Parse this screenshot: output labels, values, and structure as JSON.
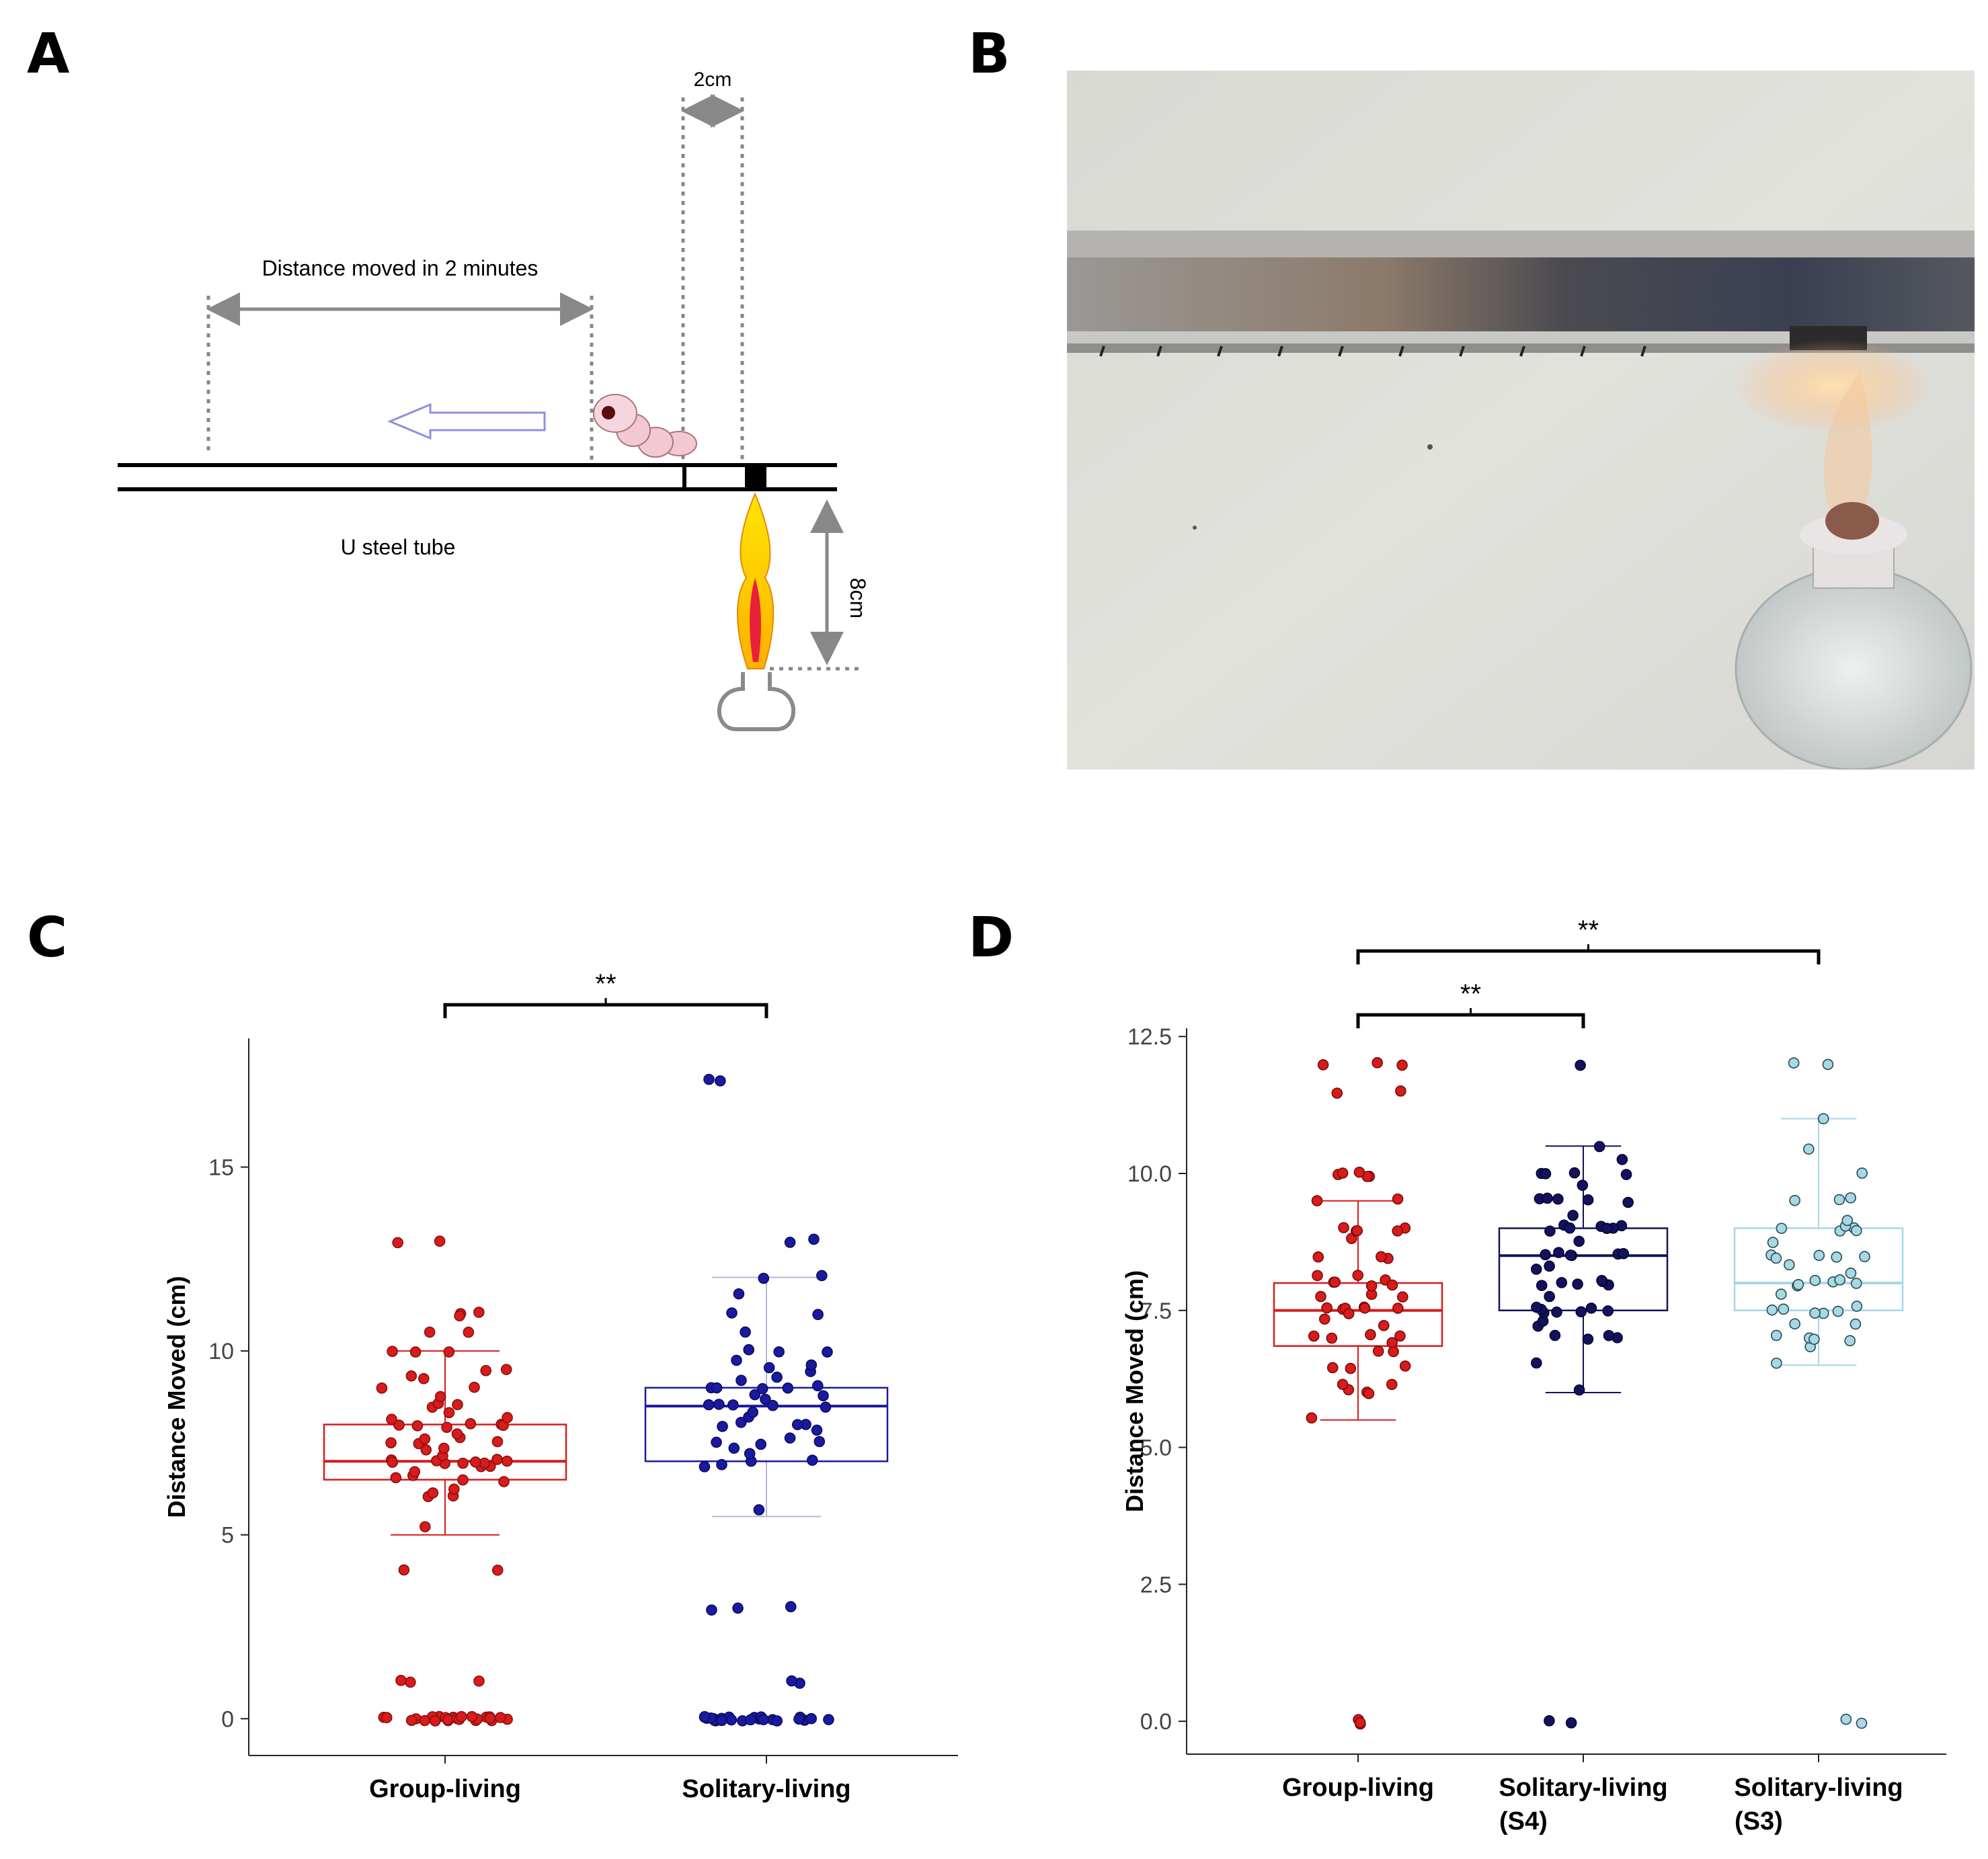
{
  "panel_labels": {
    "a": "A",
    "b": "B",
    "c": "C",
    "d": "D"
  },
  "diagram": {
    "gap_label": "2cm",
    "distance_label": "Distance moved in 2 minutes",
    "tube_label": "U steel tube",
    "height_label": "8cm"
  },
  "photo": {
    "description_icon": "steel-tube-over-alcohol-lamp-photo"
  },
  "colors": {
    "group": "#d81b1b",
    "solitary": "#1a1aa0",
    "solitary_s4": "#12125e",
    "solitary_s3": "#a6d8e6",
    "axis": "#222222"
  },
  "chart_data": [
    {
      "type": "scatter",
      "panel": "C",
      "ylabel": "Distance Moved (cm)",
      "xlabel": "",
      "ylim": [
        -1.0,
        18.5
      ],
      "yticks": [
        "0",
        "5",
        "10",
        "15"
      ],
      "categories": [
        "Group-living",
        "Solitary-living"
      ],
      "significance": [
        {
          "from": 0,
          "to": 1,
          "label": "**"
        }
      ],
      "boxes": [
        {
          "q1": 6.5,
          "median": 7.0,
          "q3": 8.0,
          "whisker_low": 5.0,
          "whisker_high": 10.0
        },
        {
          "q1": 7.0,
          "median": 8.5,
          "q3": 9.0,
          "whisker_low": 5.5,
          "whisker_high": 12.0
        }
      ],
      "points": [
        [
          0,
          0,
          0,
          0,
          0,
          0,
          0,
          0,
          0,
          0,
          0,
          0,
          0,
          0,
          0,
          0,
          0,
          0,
          0,
          0,
          0,
          0,
          0,
          0,
          1,
          1,
          1,
          4,
          4,
          5.2,
          6,
          6,
          6.2,
          6.3,
          6.5,
          6.5,
          6.5,
          6.6,
          6.7,
          6.8,
          6.9,
          7,
          7,
          7,
          7,
          7,
          7,
          7,
          7,
          7.1,
          7.2,
          7.3,
          7.4,
          7.5,
          7.5,
          7.5,
          7.6,
          7.7,
          7.8,
          7.9,
          8,
          8,
          8,
          8,
          8,
          8.1,
          8.2,
          8.3,
          8.5,
          8.5,
          8.6,
          8.8,
          9,
          9,
          9.2,
          9.3,
          9.5,
          9.5,
          10,
          10,
          10,
          10.5,
          10.5,
          11,
          11,
          11,
          13,
          13
        ],
        [
          0,
          0,
          0,
          0,
          0,
          0,
          0,
          0,
          0,
          0,
          0,
          0,
          0,
          0,
          0,
          0,
          0,
          0,
          0,
          0,
          0,
          0,
          0,
          0,
          1,
          1,
          3,
          3,
          3,
          5.7,
          6.8,
          6.9,
          7,
          7,
          7.2,
          7.3,
          7.5,
          7.5,
          7.5,
          7.6,
          7.8,
          8,
          8,
          8,
          8,
          8.2,
          8.3,
          8.5,
          8.5,
          8.5,
          8.5,
          8.6,
          8.7,
          8.8,
          8.8,
          9,
          9,
          9,
          9,
          9,
          9.2,
          9.3,
          9.5,
          9.5,
          9.6,
          9.8,
          10,
          10,
          10,
          10.5,
          11,
          11,
          11.5,
          12,
          12,
          13,
          13,
          17.3,
          17.4
        ]
      ]
    },
    {
      "type": "scatter",
      "panel": "D",
      "ylabel": "Distance Moved (cm)",
      "xlabel": "",
      "ylim": [
        -0.6,
        12.65
      ],
      "yticks": [
        "0.0",
        "2.5",
        "5.0",
        "7.5",
        "10.0",
        "12.5"
      ],
      "categories": [
        "Group-living",
        "Solitary-living (S4)",
        "Solitary-living (S3)"
      ],
      "category_lines": [
        [
          "Group-living",
          ""
        ],
        [
          "Solitary-living",
          "(S4)"
        ],
        [
          "Solitary-living",
          "(S3)"
        ]
      ],
      "significance": [
        {
          "from": 0,
          "to": 1,
          "label": "**"
        },
        {
          "from": 0,
          "to": 2,
          "label": "**"
        }
      ],
      "boxes": [
        {
          "q1": 6.85,
          "median": 7.5,
          "q3": 8.0,
          "whisker_low": 5.5,
          "whisker_high": 9.5
        },
        {
          "q1": 7.5,
          "median": 8.5,
          "q3": 9.0,
          "whisker_low": 6.0,
          "whisker_high": 10.5
        },
        {
          "q1": 7.5,
          "median": 8.0,
          "q3": 9.0,
          "whisker_low": 6.5,
          "whisker_high": 11.0
        }
      ],
      "points": [
        [
          0,
          0,
          0,
          5.5,
          6,
          6,
          6,
          6.1,
          6.2,
          6.5,
          6.5,
          6.5,
          6.7,
          6.8,
          6.9,
          7,
          7,
          7,
          7,
          7.2,
          7.3,
          7.5,
          7.5,
          7.5,
          7.5,
          7.5,
          7.5,
          7.6,
          7.7,
          7.8,
          7.8,
          8,
          8,
          8,
          8,
          8,
          8.1,
          8.2,
          8.5,
          8.5,
          8.5,
          8.8,
          9,
          9,
          9,
          9,
          9,
          9.5,
          9.5,
          10,
          10,
          10,
          10,
          10,
          11.5,
          11.5,
          12,
          12,
          12
        ],
        [
          0,
          0,
          6,
          6.5,
          7,
          7,
          7,
          7,
          7.2,
          7.3,
          7.5,
          7.5,
          7.5,
          7.5,
          7.5,
          7.5,
          7.6,
          7.8,
          8,
          8,
          8,
          8,
          8,
          8,
          8.2,
          8.3,
          8.5,
          8.5,
          8.5,
          8.5,
          8.5,
          8.5,
          8.8,
          9,
          9,
          9,
          9,
          9,
          9,
          9,
          9.2,
          9.5,
          9.5,
          9.5,
          9.5,
          9.6,
          9.8,
          10,
          10,
          10,
          10,
          10.2,
          10.5,
          12
        ],
        [
          0,
          0,
          6.5,
          6.8,
          7,
          7,
          7,
          7,
          7.2,
          7.3,
          7.5,
          7.5,
          7.5,
          7.5,
          7.5,
          7.6,
          7.8,
          8,
          8,
          8,
          8,
          8,
          8,
          8.2,
          8.3,
          8.5,
          8.5,
          8.5,
          8.5,
          8.5,
          8.7,
          9,
          9,
          9,
          9,
          9,
          9.2,
          9.5,
          9.5,
          9.5,
          10,
          10.5,
          11,
          12,
          12
        ]
      ]
    }
  ]
}
